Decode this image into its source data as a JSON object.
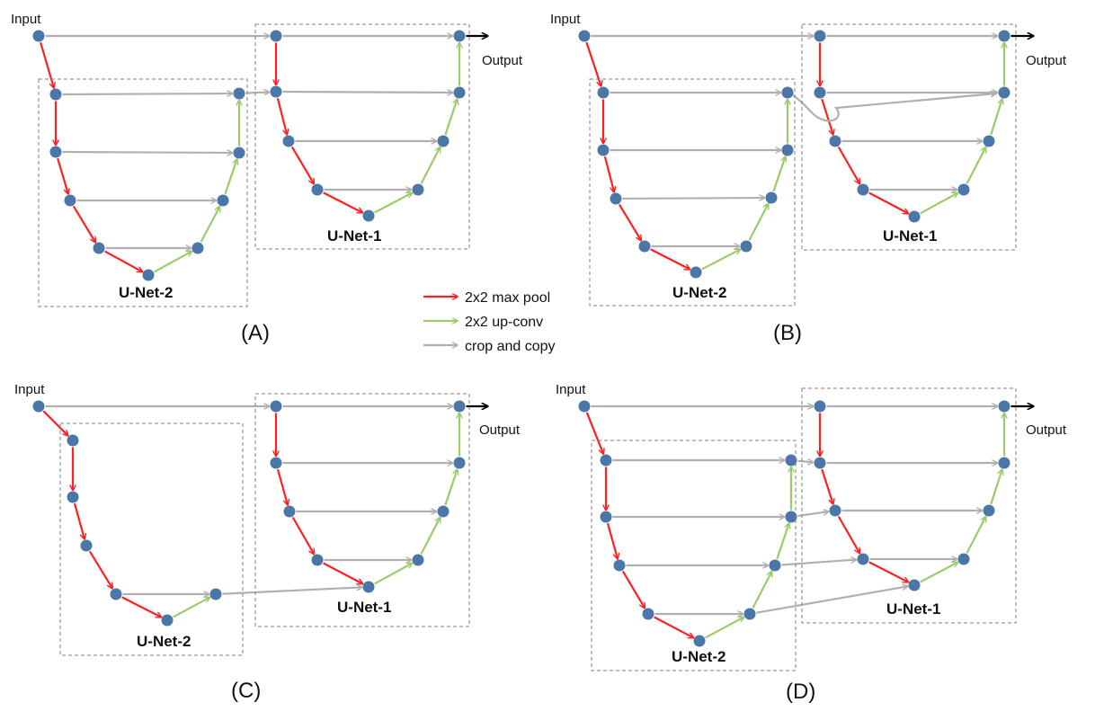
{
  "labels": {
    "input": "Input",
    "output": "Output",
    "unet1": "U-Net-1",
    "unet2": "U-Net-2"
  },
  "legend": {
    "max_pool": "2x2 max pool",
    "up_conv": "2x2 up-conv",
    "crop_copy": "crop and copy"
  },
  "panels": [
    "(A)",
    "(B)",
    "(C)",
    "(D)"
  ],
  "colors": {
    "max_pool": "#ff2020",
    "up_conv": "#9bcb6b",
    "crop_copy": "#b0b0b0",
    "node": "#4a76a8",
    "output_arrow": "#000000"
  }
}
